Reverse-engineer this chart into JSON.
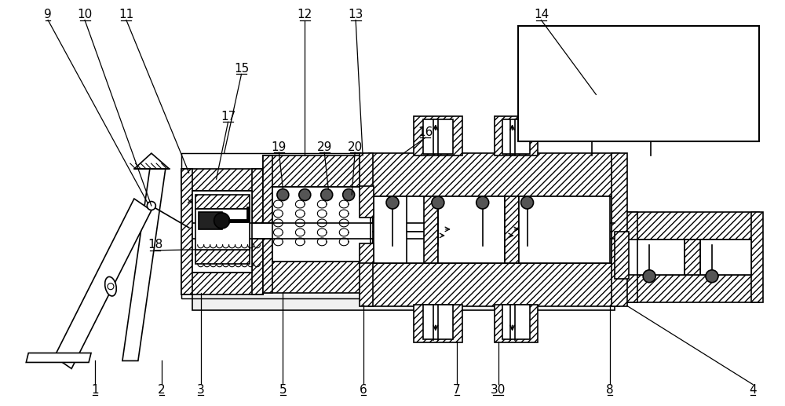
{
  "bg": "#ffffff",
  "lc": "#000000",
  "lw": 1.2,
  "fw": 10.0,
  "fh": 5.17,
  "dpi": 100,
  "hatch_density": "////",
  "chevron_hatch": ">>>>",
  "label_fs": 11
}
